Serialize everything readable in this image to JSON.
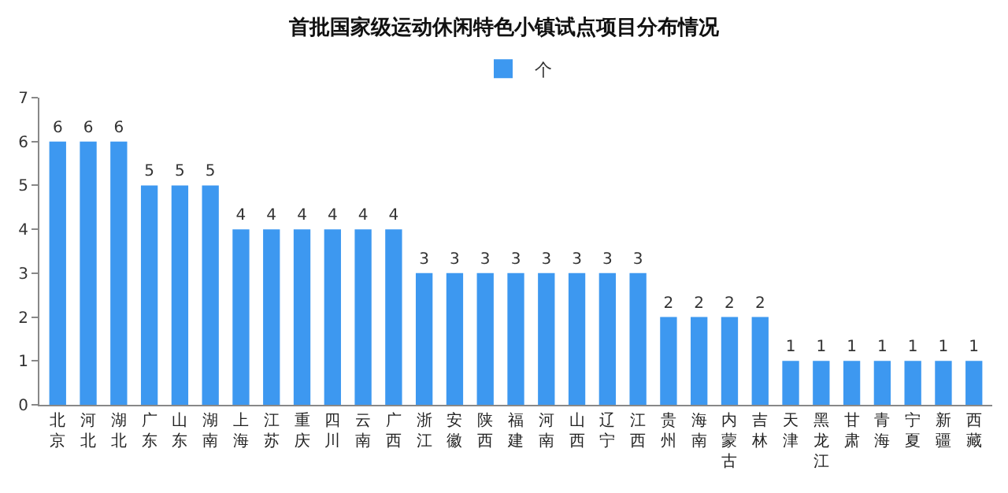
{
  "chart_data": {
    "type": "bar",
    "title": "首批国家级运动休闲特色小镇试点项目分布情况",
    "categories": [
      "北京",
      "河北",
      "湖北",
      "广东",
      "山东",
      "湖南",
      "上海",
      "江苏",
      "重庆",
      "四川",
      "云南",
      "广西",
      "浙江",
      "安徽",
      "陕西",
      "福建",
      "河南",
      "山西",
      "辽宁",
      "江西",
      "贵州",
      "海南",
      "内蒙古",
      "吉林",
      "天津",
      "黑龙江",
      "甘肃",
      "青海",
      "宁夏",
      "新疆",
      "西藏"
    ],
    "series": [
      {
        "name": "个",
        "color": "#3d98f0",
        "values": [
          6,
          6,
          6,
          5,
          5,
          5,
          4,
          4,
          4,
          4,
          4,
          4,
          3,
          3,
          3,
          3,
          3,
          3,
          3,
          3,
          2,
          2,
          2,
          2,
          1,
          1,
          1,
          1,
          1,
          1,
          1
        ]
      }
    ],
    "ylim": [
      0,
      7
    ],
    "yticks": [
      0,
      1,
      2,
      3,
      4,
      5,
      6,
      7
    ],
    "grid": false,
    "legend": "top",
    "data_labels": true
  }
}
